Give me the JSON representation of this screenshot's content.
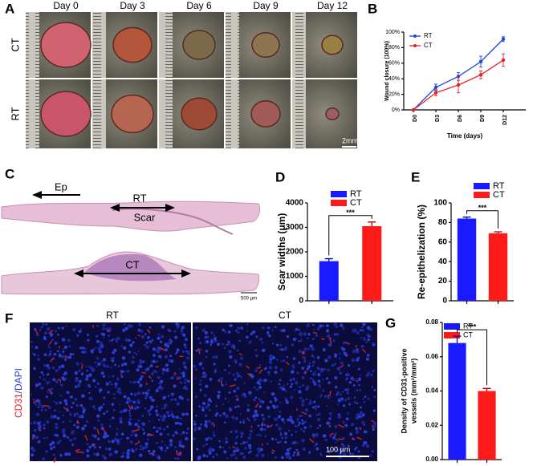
{
  "panel_labels": [
    "A",
    "B",
    "C",
    "D",
    "E",
    "F",
    "G"
  ],
  "photo_panel": {
    "columns": [
      "Day 0",
      "Day 3",
      "Day 6",
      "Day 9",
      "Day 12"
    ],
    "rows": [
      "CT",
      "RT"
    ],
    "scale_bar": "2mm"
  },
  "histology_panel": {
    "labels": [
      "Ep",
      "RT",
      "Scar",
      "CT"
    ],
    "scale_bar": "500 μm"
  },
  "fluorescence_panel": {
    "columns": [
      "RT",
      "CT"
    ],
    "stain_red": "CD31",
    "stain_blue": "/DAPI",
    "scale_bar": "100 μm"
  },
  "chart_data": [
    {
      "type": "line",
      "xlabel": "Time (days)",
      "ylabel": [
        "Wound closure (100%)"
      ],
      "categories": [
        "D0",
        "D3",
        "D6",
        "D9",
        "D12"
      ],
      "series": [
        {
          "name": "RT",
          "color": "#2244dd",
          "values": [
            0,
            29,
            43,
            62,
            91
          ],
          "errors": [
            0,
            4,
            5,
            7,
            3
          ]
        },
        {
          "name": "CT",
          "color": "#e52222",
          "values": [
            0,
            22,
            32,
            45,
            64
          ],
          "errors": [
            0,
            4,
            10,
            5,
            8
          ]
        }
      ],
      "ylim": [
        0,
        100
      ],
      "yticks": [
        {
          "value": 0,
          "label": "0%"
        },
        {
          "value": 20,
          "label": "20%"
        },
        {
          "value": 40,
          "label": "40%"
        },
        {
          "value": 60,
          "label": "60%"
        },
        {
          "value": 80,
          "label": "80%"
        },
        {
          "value": 100,
          "label": "100%"
        }
      ]
    },
    {
      "type": "bar",
      "ylabel": [
        "Scar widths (μm)"
      ],
      "annotation": "***",
      "series": [
        {
          "name": "RT",
          "color": "#1a1aff",
          "values": [
            1620
          ],
          "errors": [
            100
          ]
        },
        {
          "name": "CT",
          "color": "#ff1a1a",
          "values": [
            3050
          ],
          "errors": [
            170
          ]
        }
      ],
      "ylim": [
        0,
        4000
      ],
      "yticks": [
        0,
        1000,
        2000,
        3000,
        4000
      ]
    },
    {
      "type": "bar",
      "ylabel": [
        "Re-epithelization (%)"
      ],
      "annotation": "***",
      "series": [
        {
          "name": "RT",
          "color": "#1a1aff",
          "values": [
            84
          ],
          "errors": [
            1.5
          ]
        },
        {
          "name": "CT",
          "color": "#ff1a1a",
          "values": [
            69
          ],
          "errors": [
            1.5
          ]
        }
      ],
      "ylim": [
        0,
        100
      ],
      "yticks": [
        0,
        20,
        40,
        60,
        80,
        100
      ]
    },
    {
      "type": "bar",
      "ylabel": [
        "Density of CD31-positive",
        "vessels (mm²/mm²)"
      ],
      "annotation": "***",
      "series": [
        {
          "name": "RT",
          "color": "#1a1aff",
          "values": [
            0.068
          ],
          "errors": [
            0.004
          ]
        },
        {
          "name": "CT",
          "color": "#ff1a1a",
          "values": [
            0.04
          ],
          "errors": [
            0.0015
          ]
        }
      ],
      "ylim": [
        0,
        0.08
      ],
      "yticks": [
        {
          "value": 0,
          "label": "0.00"
        },
        0.02,
        0.04,
        0.06,
        0.08
      ]
    }
  ]
}
